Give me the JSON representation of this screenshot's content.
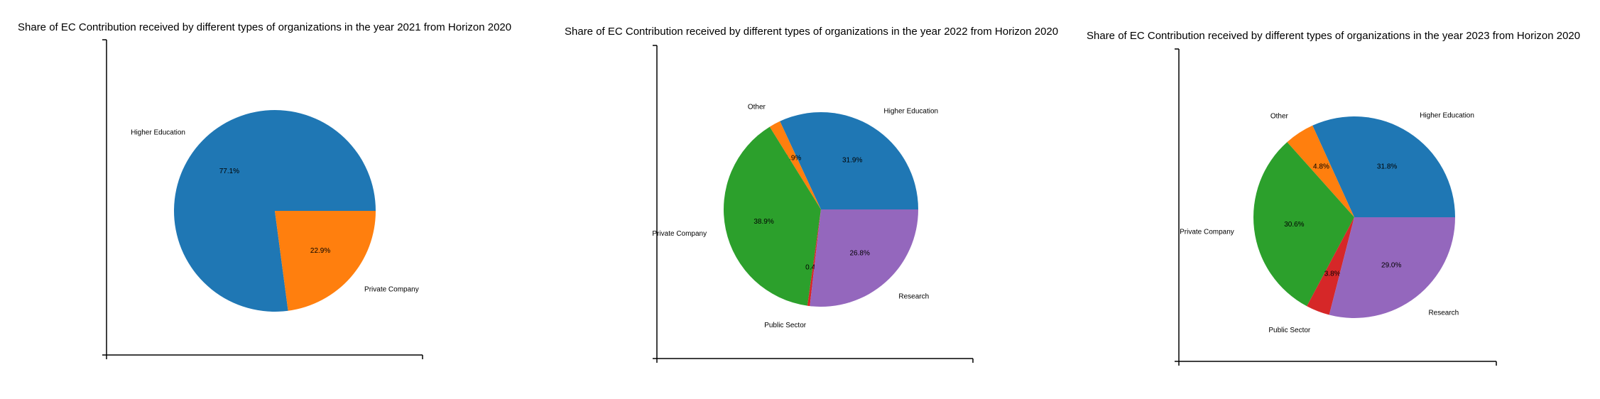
{
  "chart_data": [
    {
      "type": "pie",
      "title": "Share of EC Contribution received by different types of organizations in the year 2021 from Horizon 2020",
      "slices": [
        {
          "label": "Higher Education",
          "value": 77.1,
          "pct_label": "77.1%",
          "color": "#1f77b4"
        },
        {
          "label": "Private Company",
          "value": 22.9,
          "pct_label": "22.9%",
          "color": "#ff7f0e"
        }
      ]
    },
    {
      "type": "pie",
      "title": "Share of EC Contribution received by different types of organizations in the year 2022 from Horizon 2020",
      "slices": [
        {
          "label": "Higher Education",
          "value": 31.9,
          "pct_label": "31.9%",
          "color": "#1f77b4"
        },
        {
          "label": "Other",
          "value": 1.9,
          "pct_label": "1.9%",
          "color": "#ff7f0e"
        },
        {
          "label": "Private Company",
          "value": 38.9,
          "pct_label": "38.9%",
          "color": "#2ca02c"
        },
        {
          "label": "Public Sector",
          "value": 0.4,
          "pct_label": "0.4%",
          "color": "#d62728"
        },
        {
          "label": "Research",
          "value": 26.8,
          "pct_label": "26.8%",
          "color": "#9467bd"
        }
      ]
    },
    {
      "type": "pie",
      "title": "Share of EC Contribution received by different types of organizations in the year 2023 from Horizon 2020",
      "slices": [
        {
          "label": "Higher Education",
          "value": 31.8,
          "pct_label": "31.8%",
          "color": "#1f77b4"
        },
        {
          "label": "Other",
          "value": 4.8,
          "pct_label": "4.8%",
          "color": "#ff7f0e"
        },
        {
          "label": "Private Company",
          "value": 30.6,
          "pct_label": "30.6%",
          "color": "#2ca02c"
        },
        {
          "label": "Public Sector",
          "value": 3.8,
          "pct_label": "3.8%",
          "color": "#d62728"
        },
        {
          "label": "Research",
          "value": 29.0,
          "pct_label": "29.0%",
          "color": "#9467bd"
        }
      ]
    }
  ]
}
